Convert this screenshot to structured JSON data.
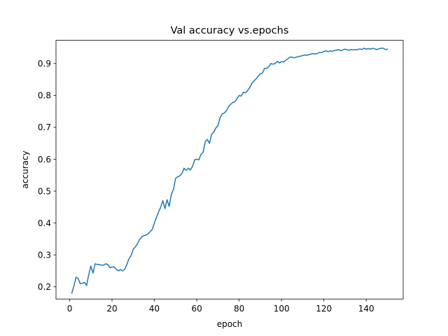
{
  "chart_data": {
    "type": "line",
    "title": "Val accuracy vs.epochs",
    "xlabel": "epoch",
    "ylabel": "accuracy",
    "xlim": [
      -6.45,
      157.45
    ],
    "ylim": [
      0.1616,
      0.9728
    ],
    "xticks": [
      0,
      20,
      40,
      60,
      80,
      100,
      120,
      140
    ],
    "yticks": [
      0.2,
      0.3,
      0.4,
      0.5,
      0.6,
      0.7,
      0.8,
      0.9
    ],
    "grid": false,
    "legend": "none",
    "series": [
      {
        "color": "#1f77b4",
        "x": [
          1,
          2,
          3,
          4,
          5,
          6,
          7,
          8,
          9,
          10,
          11,
          12,
          13,
          14,
          15,
          16,
          17,
          18,
          19,
          20,
          21,
          22,
          23,
          24,
          25,
          26,
          27,
          28,
          29,
          30,
          31,
          32,
          33,
          34,
          35,
          36,
          37,
          38,
          39,
          40,
          41,
          42,
          43,
          44,
          45,
          46,
          47,
          48,
          49,
          50,
          51,
          52,
          53,
          54,
          55,
          56,
          57,
          58,
          59,
          60,
          61,
          62,
          63,
          64,
          65,
          66,
          67,
          68,
          69,
          70,
          71,
          72,
          73,
          74,
          75,
          76,
          77,
          78,
          79,
          80,
          81,
          82,
          83,
          84,
          85,
          86,
          87,
          88,
          89,
          90,
          91,
          92,
          93,
          94,
          95,
          96,
          97,
          98,
          99,
          100,
          101,
          102,
          103,
          104,
          105,
          106,
          107,
          108,
          109,
          110,
          111,
          112,
          113,
          114,
          115,
          116,
          117,
          118,
          119,
          120,
          121,
          122,
          123,
          124,
          125,
          126,
          127,
          128,
          129,
          130,
          131,
          132,
          133,
          134,
          135,
          136,
          137,
          138,
          139,
          140,
          141,
          142,
          143,
          144,
          145,
          146,
          147,
          148,
          149,
          150
        ],
        "y": [
          0.18,
          0.202,
          0.23,
          0.226,
          0.21,
          0.211,
          0.214,
          0.204,
          0.238,
          0.265,
          0.243,
          0.272,
          0.27,
          0.27,
          0.268,
          0.268,
          0.272,
          0.27,
          0.26,
          0.262,
          0.262,
          0.255,
          0.25,
          0.254,
          0.25,
          0.255,
          0.27,
          0.288,
          0.298,
          0.318,
          0.325,
          0.335,
          0.348,
          0.357,
          0.36,
          0.362,
          0.366,
          0.373,
          0.38,
          0.4,
          0.418,
          0.435,
          0.45,
          0.47,
          0.445,
          0.473,
          0.452,
          0.49,
          0.505,
          0.54,
          0.545,
          0.548,
          0.555,
          0.572,
          0.565,
          0.572,
          0.566,
          0.578,
          0.598,
          0.6,
          0.598,
          0.615,
          0.622,
          0.655,
          0.662,
          0.65,
          0.678,
          0.685,
          0.698,
          0.705,
          0.73,
          0.742,
          0.745,
          0.752,
          0.765,
          0.772,
          0.778,
          0.78,
          0.79,
          0.8,
          0.798,
          0.81,
          0.808,
          0.815,
          0.825,
          0.838,
          0.845,
          0.852,
          0.86,
          0.868,
          0.87,
          0.885,
          0.885,
          0.89,
          0.9,
          0.898,
          0.9,
          0.907,
          0.902,
          0.906,
          0.905,
          0.91,
          0.915,
          0.92,
          0.92,
          0.918,
          0.92,
          0.922,
          0.923,
          0.925,
          0.927,
          0.926,
          0.928,
          0.93,
          0.931,
          0.93,
          0.932,
          0.935,
          0.934,
          0.938,
          0.94,
          0.937,
          0.94,
          0.938,
          0.941,
          0.942,
          0.944,
          0.94,
          0.943,
          0.945,
          0.943,
          0.942,
          0.944,
          0.943,
          0.943,
          0.944,
          0.946,
          0.944,
          0.948,
          0.945,
          0.947,
          0.945,
          0.948,
          0.946,
          0.944,
          0.946,
          0.948,
          0.948,
          0.944,
          0.945
        ]
      }
    ]
  }
}
